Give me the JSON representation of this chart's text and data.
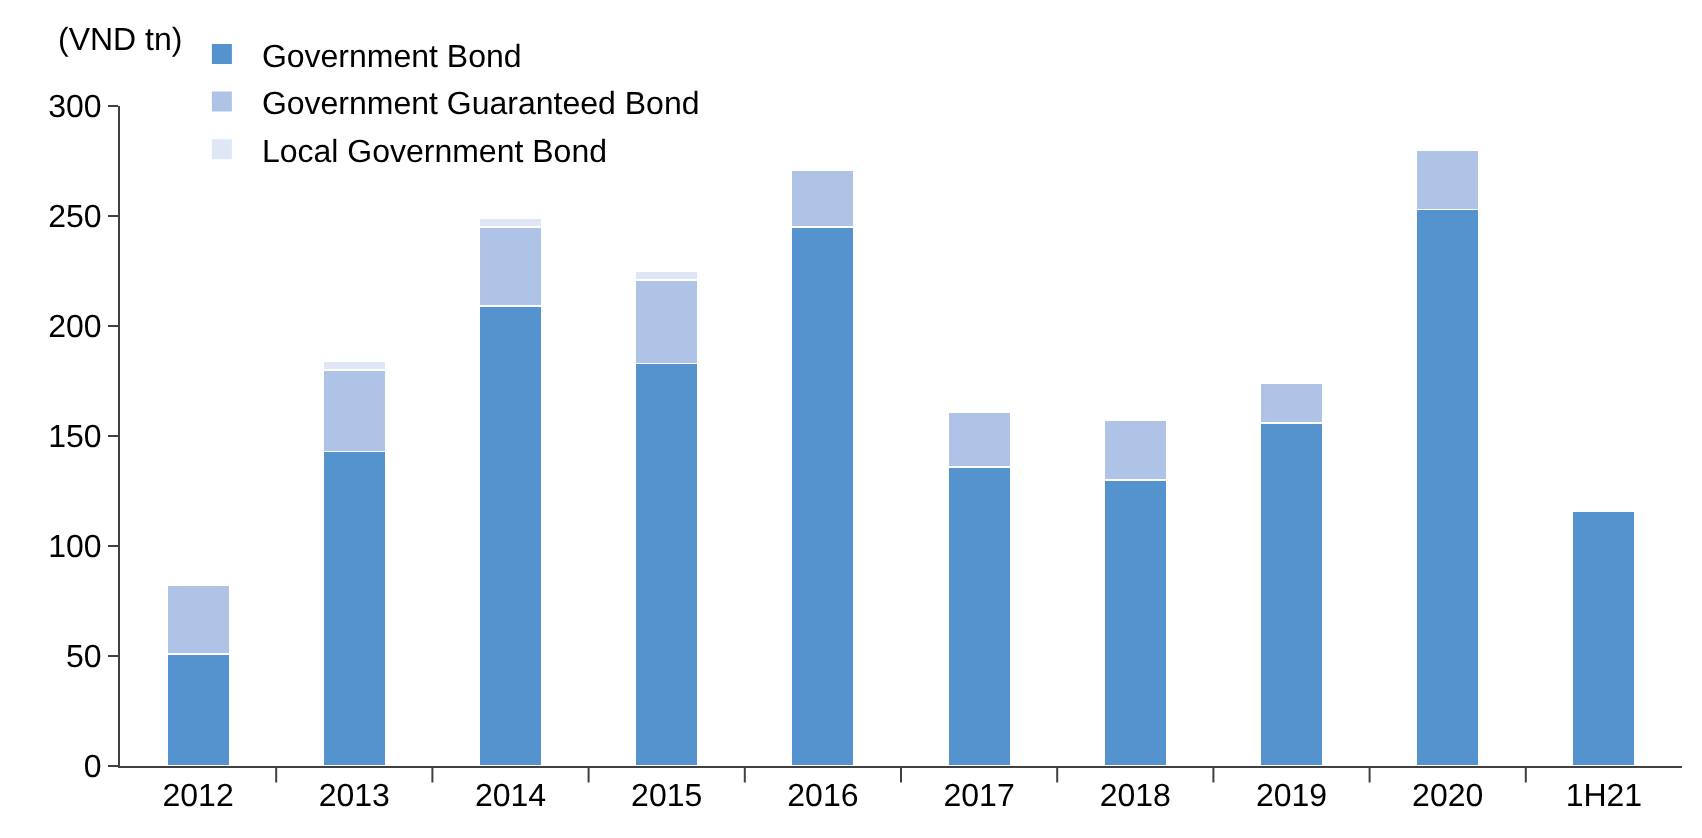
{
  "chart_data": {
    "type": "bar",
    "stacked": true,
    "ylabel": "(VND tn)",
    "categories": [
      "2012",
      "2013",
      "2014",
      "2015",
      "2016",
      "2017",
      "2018",
      "2019",
      "2020",
      "1H21"
    ],
    "series": [
      {
        "name": "Government Bond",
        "color": "#5593ce",
        "values": [
          51,
          143,
          209,
          183,
          245,
          136,
          130,
          156,
          253,
          116
        ]
      },
      {
        "name": "Government Guaranteed Bond",
        "color": "#aec3e6",
        "values": [
          31,
          37,
          36,
          38,
          26,
          25,
          27,
          18,
          27,
          null
        ]
      },
      {
        "name": "Local Government Bond",
        "color": "#dfe7f6",
        "values": [
          null,
          4,
          4,
          4,
          null,
          null,
          null,
          null,
          null,
          null
        ]
      }
    ],
    "ylim": [
      0,
      300
    ],
    "yticks": [
      0,
      50,
      100,
      150,
      200,
      250,
      300
    ],
    "legend": "top"
  }
}
